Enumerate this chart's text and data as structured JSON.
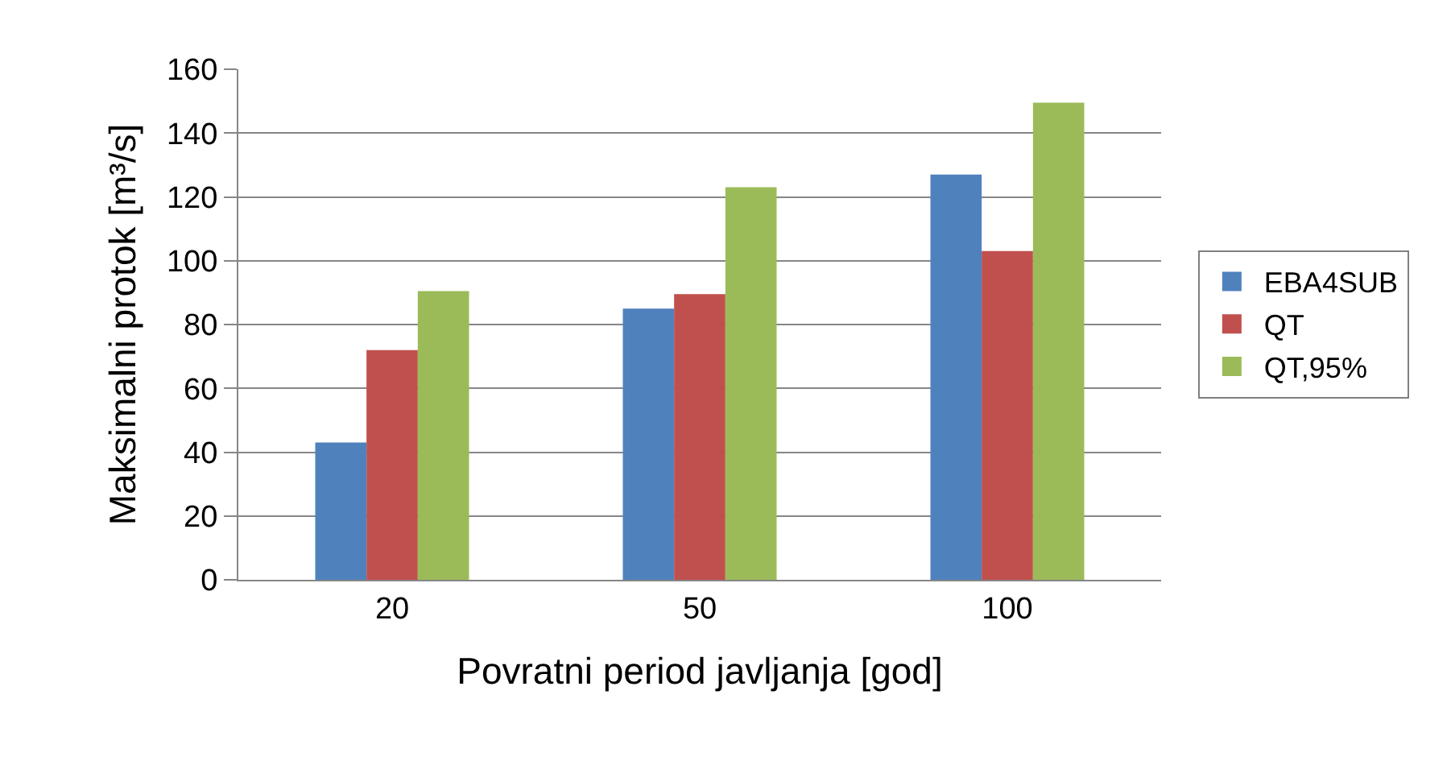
{
  "chart_data": {
    "type": "bar",
    "xlabel": "Povratni period javljanja [god]",
    "ylabel": "Maksimalni protok [m³/s]",
    "categories": [
      "20",
      "50",
      "100"
    ],
    "series": [
      {
        "name": "EBA4SUB",
        "color": "#4f81bd",
        "values": [
          43,
          85,
          127
        ]
      },
      {
        "name": "QT",
        "color": "#c0504d",
        "values": [
          72,
          89.5,
          103
        ]
      },
      {
        "name": "QT,95%",
        "color": "#9bbb59",
        "values": [
          90.5,
          123,
          149.5
        ]
      }
    ],
    "ylim": [
      0,
      160
    ],
    "yticks": [
      0,
      20,
      40,
      60,
      80,
      100,
      120,
      140,
      160
    ],
    "grid": "y",
    "legend": "right"
  }
}
